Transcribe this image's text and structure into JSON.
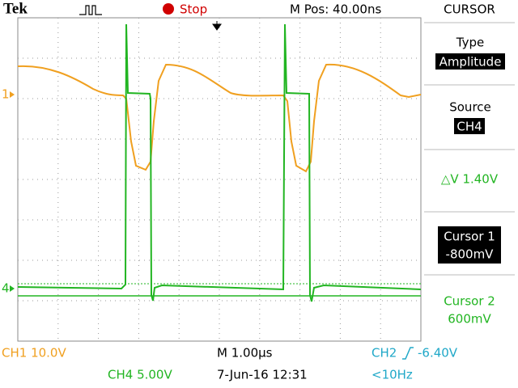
{
  "header": {
    "brand": "Tek",
    "state": "Stop",
    "position": "M Pos: 40.00ns",
    "menu_title": "CURSOR"
  },
  "menu": {
    "type_label": "Type",
    "type_value": "Amplitude",
    "source_label": "Source",
    "source_value": "CH4",
    "delta": "△V 1.40V",
    "cursor1_label": "Cursor 1",
    "cursor1_value": "-800mV",
    "cursor2_label": "Cursor 2",
    "cursor2_value": "600mV"
  },
  "markers": {
    "ch1": "1",
    "ch4": "4"
  },
  "footer": {
    "ch1": "CH1  10.0V",
    "timebase": "M 1.00µs",
    "ch2": "CH2",
    "trigger_level": "-6.40V",
    "ch4": "CH4  5.00V",
    "date": "7-Jun-16 12:31",
    "frequency": "<10Hz"
  }
}
